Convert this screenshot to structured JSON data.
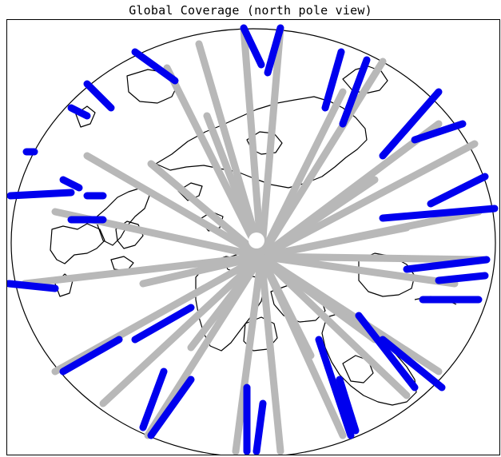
{
  "figure": {
    "title": "Global Coverage (north pole view)"
  },
  "map": {
    "projection": "polar (north pole view)",
    "colors": {
      "frame": "#000000",
      "coastline": "#000000",
      "track_high_latitude": "#b8b8b8",
      "track_low_latitude": "#0000ee",
      "pole_hole": "#ffffff"
    }
  }
}
